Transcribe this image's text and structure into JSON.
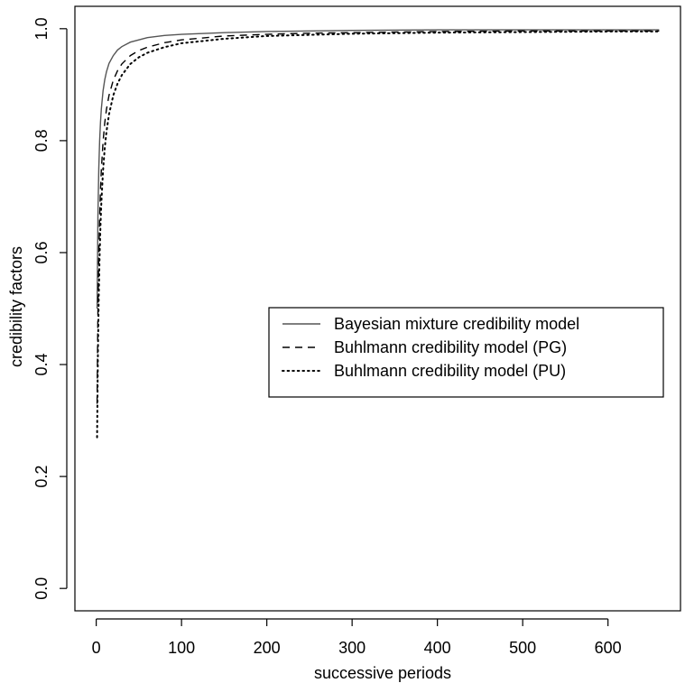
{
  "chart_data": {
    "type": "line",
    "title": "",
    "xlabel": "successive periods",
    "ylabel": "credibility factors",
    "xlim": [
      -25,
      685
    ],
    "ylim": [
      -0.04,
      1.04
    ],
    "x_ticks": [
      0,
      100,
      200,
      300,
      400,
      500,
      600
    ],
    "x_tick_labels": [
      "0",
      "100",
      "200",
      "300",
      "400",
      "500",
      "600"
    ],
    "y_ticks": [
      0.0,
      0.2,
      0.4,
      0.6,
      0.8,
      1.0
    ],
    "y_tick_labels": [
      "0.0",
      "0.2",
      "0.4",
      "0.6",
      "0.8",
      "1.0"
    ],
    "grid": false,
    "legend_position": "right",
    "series": [
      {
        "name": "Bayesian mixture credibility model",
        "line_style": "solid",
        "color": "#555555",
        "x": [
          1,
          2,
          3,
          4,
          5,
          6,
          8,
          10,
          12,
          15,
          20,
          25,
          30,
          40,
          50,
          60,
          80,
          100,
          150,
          200,
          250,
          300,
          400,
          500,
          600,
          660
        ],
        "y": [
          0.5,
          0.667,
          0.75,
          0.8,
          0.833,
          0.857,
          0.889,
          0.909,
          0.923,
          0.938,
          0.952,
          0.962,
          0.968,
          0.976,
          0.98,
          0.984,
          0.988,
          0.99,
          0.993,
          0.995,
          0.996,
          0.997,
          0.998,
          0.998,
          0.998,
          0.998
        ]
      },
      {
        "name": "Buhlmann credibility model (PG)",
        "line_style": "dashed",
        "color": "#000000",
        "x": [
          1,
          2,
          3,
          4,
          5,
          6,
          8,
          10,
          12,
          15,
          20,
          25,
          30,
          40,
          50,
          60,
          80,
          100,
          150,
          200,
          250,
          300,
          400,
          500,
          600,
          660
        ],
        "y": [
          0.33,
          0.497,
          0.597,
          0.664,
          0.712,
          0.748,
          0.798,
          0.832,
          0.856,
          0.881,
          0.908,
          0.925,
          0.937,
          0.952,
          0.961,
          0.967,
          0.975,
          0.98,
          0.987,
          0.99,
          0.992,
          0.993,
          0.995,
          0.996,
          0.996,
          0.996
        ]
      },
      {
        "name": "Buhlmann credibility model (PU)",
        "line_style": "dotted",
        "color": "#000000",
        "x": [
          1,
          2,
          3,
          4,
          5,
          6,
          8,
          10,
          12,
          15,
          20,
          25,
          30,
          40,
          50,
          60,
          80,
          100,
          150,
          200,
          250,
          300,
          400,
          500,
          600,
          660
        ],
        "y": [
          0.27,
          0.425,
          0.526,
          0.597,
          0.649,
          0.689,
          0.747,
          0.787,
          0.816,
          0.847,
          0.881,
          0.902,
          0.917,
          0.937,
          0.949,
          0.957,
          0.967,
          0.974,
          0.982,
          0.987,
          0.989,
          0.991,
          0.993,
          0.994,
          0.995,
          0.995
        ]
      }
    ]
  }
}
